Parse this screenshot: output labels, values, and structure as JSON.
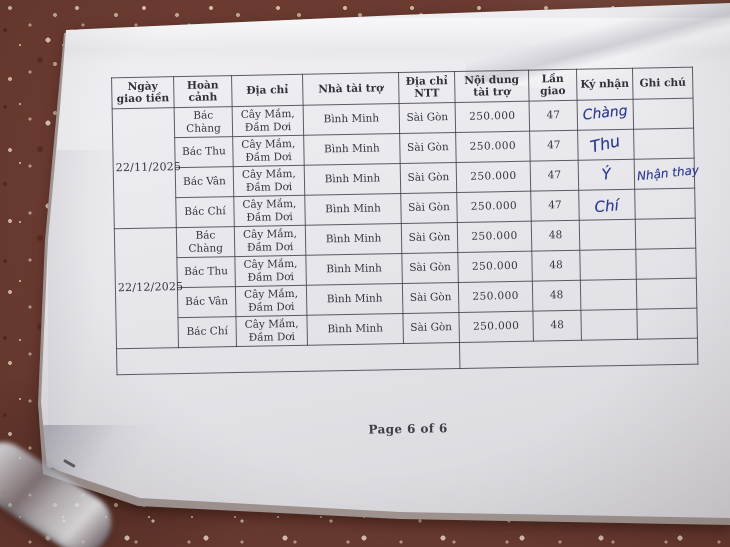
{
  "page": {
    "footer": "Page 6 of 6"
  },
  "colors": {
    "ink_blue": "#2c3a91",
    "paper": "#e8e7eb",
    "floor": "#6b3b31"
  },
  "table": {
    "headers": [
      "Ngày giao tiền",
      "Hoàn cảnh",
      "Địa chỉ",
      "Nhà tài trợ",
      "Địa chỉ NTT",
      "Nội dung tài trợ",
      "Lần giao",
      "Ký nhận",
      "Ghi chú"
    ],
    "groups": [
      {
        "date": "22/11/2025",
        "rows": [
          {
            "name": "Bác Chàng",
            "address": "Cây Mắm, Đầm Dơi",
            "sponsor": "Bình Minh",
            "sponsor_address": "Sài Gòn",
            "amount": "250.000",
            "batch": "47",
            "signature": "Chàng",
            "note": ""
          },
          {
            "name": "Bác Thu",
            "address": "Cây Mắm, Đầm Dơi",
            "sponsor": "Bình Minh",
            "sponsor_address": "Sài Gòn",
            "amount": "250.000",
            "batch": "47",
            "signature": "Thu",
            "note": ""
          },
          {
            "name": "Bác Vân",
            "address": "Cây Mắm, Đầm Dơi",
            "sponsor": "Bình Minh",
            "sponsor_address": "Sài Gòn",
            "amount": "250.000",
            "batch": "47",
            "signature": "Ý",
            "note": "Nhận thay"
          },
          {
            "name": "Bác Chí",
            "address": "Cây Mắm, Đầm Dơi",
            "sponsor": "Bình Minh",
            "sponsor_address": "Sài Gòn",
            "amount": "250.000",
            "batch": "47",
            "signature": "Chí",
            "note": ""
          }
        ]
      },
      {
        "date": "22/12/2025",
        "rows": [
          {
            "name": "Bác Chàng",
            "address": "Cây Mắm, Đầm Dơi",
            "sponsor": "Bình Minh",
            "sponsor_address": "Sài Gòn",
            "amount": "250.000",
            "batch": "48",
            "signature": "",
            "note": ""
          },
          {
            "name": "Bác Thu",
            "address": "Cây Mắm, Đầm Dơi",
            "sponsor": "Bình Minh",
            "sponsor_address": "Sài Gòn",
            "amount": "250.000",
            "batch": "48",
            "signature": "",
            "note": ""
          },
          {
            "name": "Bác Vân",
            "address": "Cây Mắm, Đầm Dơi",
            "sponsor": "Bình Minh",
            "sponsor_address": "Sài Gòn",
            "amount": "250.000",
            "batch": "48",
            "signature": "",
            "note": ""
          },
          {
            "name": "Bác Chí",
            "address": "Cây Mắm, Đầm Dơi",
            "sponsor": "Bình Minh",
            "sponsor_address": "Sài Gòn",
            "amount": "250.000",
            "batch": "48",
            "signature": "",
            "note": ""
          }
        ]
      }
    ]
  }
}
